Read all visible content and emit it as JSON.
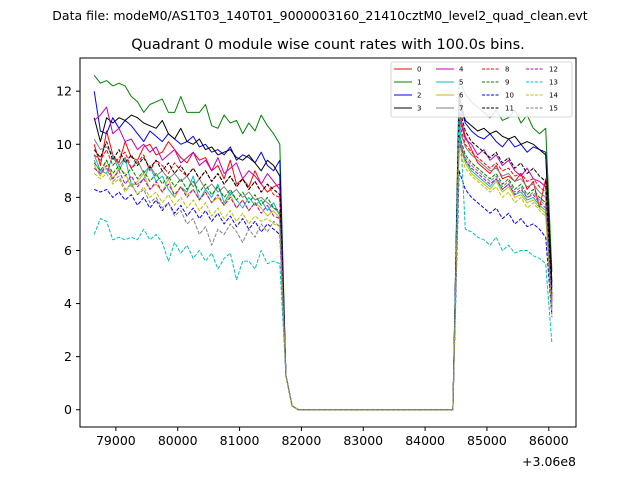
{
  "figure": {
    "suptitle": "Data file: modeM0/AS1T03_140T01_9000003160_21410cztM0_level2_quad_clean.evt"
  },
  "chart_data": {
    "type": "line",
    "title": "Quadrant 0 module wise count rates with 100.0s bins.",
    "xlabel": "",
    "ylabel": "",
    "x_offset_label": "+3.06e8",
    "xlim": [
      78420,
      86440
    ],
    "ylim": [
      -0.65,
      13.25
    ],
    "x_ticks": [
      79000,
      80000,
      81000,
      82000,
      83000,
      84000,
      85000,
      86000
    ],
    "x_tick_labels": [
      "79000",
      "80000",
      "81000",
      "82000",
      "83000",
      "84000",
      "85000",
      "86000"
    ],
    "y_ticks": [
      0,
      2,
      4,
      6,
      8,
      10,
      12
    ],
    "y_tick_labels": [
      "0",
      "2",
      "4",
      "6",
      "8",
      "10",
      "12"
    ],
    "grid": false,
    "legend_position": "top-right",
    "segments": {
      "seg1_x_start": 78650,
      "seg1_x_end": 81650,
      "drop_x": [
        81750,
        81850
      ],
      "gap_x": [
        81950,
        84450
      ],
      "seg2_x_start": 84550,
      "seg2_x_end": 85950,
      "tail_x": 86050,
      "step": 100
    },
    "series": [
      {
        "name": "0",
        "color": "#ff0000",
        "dashed": false,
        "seg1": [
          10.0,
          9.2,
          10.5,
          9.6,
          9.3,
          10.1,
          9.5,
          9.4,
          9.9,
          10.0,
          9.6,
          9.7,
          10.1,
          9.8,
          9.5,
          9.3,
          9.7,
          9.4,
          9.5,
          9.0,
          9.2,
          8.7,
          9.4,
          8.5,
          8.7,
          8.4,
          9.0,
          8.5,
          8.2,
          8.4,
          8.5
        ],
        "seg2": [
          11.2,
          10.3,
          9.8,
          9.3,
          9.1,
          8.9,
          9.2,
          8.7,
          8.8,
          8.6,
          8.9,
          8.3,
          8.6,
          7.6,
          8.7
        ],
        "tail": 4.2
      },
      {
        "name": "1",
        "color": "#008000",
        "dashed": false,
        "seg1": [
          12.6,
          12.3,
          12.4,
          12.2,
          12.3,
          12.2,
          11.8,
          11.6,
          11.2,
          11.5,
          11.6,
          11.7,
          11.2,
          11.2,
          11.8,
          11.2,
          11.2,
          11.2,
          11.5,
          10.7,
          10.6,
          11.1,
          10.8,
          10.9,
          10.4,
          10.8,
          10.5,
          11.1,
          10.7,
          10.4,
          10.0
        ],
        "seg2": [
          12.4,
          11.9,
          11.6,
          11.4,
          11.2,
          11.0,
          11.3,
          10.9,
          11.0,
          11.3,
          10.8,
          11.1,
          10.6,
          10.4,
          10.6
        ],
        "tail": 5.2
      },
      {
        "name": "2",
        "color": "#0000ff",
        "dashed": false,
        "seg1": [
          12.0,
          10.5,
          10.4,
          11.0,
          10.6,
          10.9,
          10.7,
          10.4,
          10.1,
          10.5,
          10.3,
          10.1,
          10.4,
          10.2,
          10.0,
          10.1,
          10.3,
          9.9,
          10.0,
          9.7,
          9.8,
          9.6,
          9.9,
          9.4,
          9.6,
          9.5,
          9.3,
          9.7,
          9.2,
          9.0,
          9.4
        ],
        "seg2": [
          11.6,
          10.8,
          10.5,
          10.3,
          10.2,
          10.4,
          10.1,
          9.9,
          10.2,
          9.9,
          10.0,
          9.7,
          9.9,
          9.8,
          9.7
        ],
        "tail": 4.6
      },
      {
        "name": "3",
        "color": "#000000",
        "dashed": false,
        "seg1": [
          11.0,
          10.1,
          11.0,
          10.8,
          11.0,
          10.9,
          11.1,
          11.0,
          10.8,
          10.7,
          10.6,
          10.9,
          10.4,
          10.2,
          10.6,
          10.1,
          10.0,
          10.2,
          9.8,
          9.9,
          9.6,
          9.7,
          9.8,
          9.5,
          9.4,
          9.6,
          9.3,
          9.0,
          9.4,
          9.2,
          8.8
        ],
        "seg2": [
          11.8,
          10.9,
          10.7,
          10.5,
          10.6,
          10.4,
          10.5,
          10.3,
          10.2,
          10.3,
          10.0,
          10.1,
          10.0,
          9.8,
          9.6
        ],
        "tail": 4.8
      },
      {
        "name": "4",
        "color": "#bf00bf",
        "dashed": false,
        "seg1": [
          10.9,
          11.1,
          11.4,
          10.4,
          10.6,
          10.1,
          10.2,
          9.8,
          10.0,
          9.7,
          9.9,
          9.4,
          9.6,
          9.8,
          9.3,
          9.5,
          9.7,
          9.2,
          9.4,
          9.0,
          9.5,
          8.9,
          9.1,
          9.3,
          8.7,
          9.0,
          8.8,
          8.5,
          8.9,
          8.6,
          8.3
        ],
        "seg2": [
          11.0,
          10.2,
          10.0,
          9.6,
          9.8,
          9.4,
          9.6,
          9.2,
          9.4,
          9.0,
          8.8,
          9.1,
          8.7,
          8.6,
          8.4
        ],
        "tail": 4.3
      },
      {
        "name": "5",
        "color": "#00bfbf",
        "dashed": false,
        "seg1": [
          9.6,
          9.0,
          8.9,
          9.6,
          9.0,
          9.5,
          8.5,
          8.5,
          8.7,
          9.2,
          8.6,
          8.8,
          8.3,
          8.0,
          8.4,
          8.2,
          8.8,
          7.9,
          8.3,
          8.0,
          8.5,
          7.8,
          8.2,
          7.9,
          7.6,
          8.0,
          7.7,
          7.9,
          7.5,
          7.8,
          7.3
        ],
        "seg2": [
          10.3,
          9.4,
          9.0,
          8.8,
          8.6,
          8.4,
          8.7,
          8.3,
          8.5,
          8.1,
          8.2,
          7.9,
          8.0,
          7.7,
          7.5
        ],
        "tail": 3.6
      },
      {
        "name": "6",
        "color": "#bfbf00",
        "dashed": false,
        "seg1": [
          9.2,
          8.8,
          9.4,
          8.7,
          9.1,
          8.9,
          8.4,
          8.6,
          8.9,
          8.3,
          8.5,
          8.2,
          8.7,
          8.0,
          8.4,
          8.1,
          8.3,
          7.9,
          8.2,
          7.8,
          8.0,
          7.7,
          8.1,
          7.6,
          7.9,
          7.5,
          7.8,
          7.6,
          7.3,
          7.5,
          7.2
        ],
        "seg2": [
          10.0,
          9.3,
          8.9,
          8.7,
          8.5,
          8.3,
          8.6,
          8.2,
          8.4,
          8.0,
          8.1,
          7.8,
          7.9,
          7.6,
          7.4
        ],
        "tail": 3.9
      },
      {
        "name": "7",
        "color": "#808080",
        "dashed": false,
        "seg1": [
          10.2,
          9.8,
          9.9,
          9.6,
          9.2,
          9.5,
          9.1,
          9.4,
          8.9,
          9.2,
          8.8,
          9.0,
          8.7,
          8.9,
          8.6,
          8.8,
          8.4,
          8.7,
          8.3,
          8.5,
          8.2,
          8.4,
          8.1,
          8.3,
          8.0,
          8.2,
          7.9,
          8.0,
          7.8,
          7.6,
          7.4
        ],
        "seg2": [
          10.6,
          9.9,
          9.6,
          9.4,
          9.2,
          9.0,
          9.1,
          8.8,
          8.9,
          8.6,
          8.7,
          8.4,
          8.5,
          8.2,
          8.0
        ],
        "tail": 4.0
      },
      {
        "name": "8",
        "color": "#ff0000",
        "dashed": true,
        "seg1": [
          9.6,
          9.4,
          9.8,
          9.2,
          9.5,
          9.7,
          9.1,
          9.3,
          9.6,
          9.0,
          9.4,
          9.2,
          8.9,
          9.3,
          9.0,
          8.8,
          9.1,
          8.7,
          9.0,
          8.6,
          8.9,
          8.5,
          8.8,
          8.4,
          8.7,
          8.3,
          8.6,
          8.2,
          8.5,
          8.1,
          8.0
        ],
        "seg2": [
          10.8,
          10.0,
          9.7,
          9.5,
          9.3,
          9.1,
          9.3,
          9.0,
          9.1,
          8.8,
          8.9,
          8.6,
          8.7,
          8.4,
          8.2
        ],
        "tail": 4.1
      },
      {
        "name": "9",
        "color": "#008000",
        "dashed": true,
        "seg1": [
          9.3,
          9.0,
          9.4,
          8.9,
          9.2,
          8.8,
          9.1,
          8.7,
          9.0,
          8.6,
          8.9,
          8.5,
          8.8,
          8.4,
          8.7,
          8.3,
          8.6,
          8.2,
          8.5,
          8.1,
          8.4,
          8.0,
          8.3,
          7.9,
          8.2,
          7.8,
          8.1,
          7.7,
          8.0,
          7.6,
          7.5
        ],
        "seg2": [
          10.4,
          9.6,
          9.3,
          9.1,
          8.9,
          8.7,
          8.9,
          8.5,
          8.7,
          8.3,
          8.5,
          8.1,
          8.3,
          8.0,
          7.8
        ],
        "tail": 3.8
      },
      {
        "name": "10",
        "color": "#0000ff",
        "dashed": true,
        "seg1": [
          8.3,
          8.2,
          8.3,
          8.0,
          8.2,
          7.9,
          8.1,
          7.7,
          8.0,
          7.6,
          7.9,
          7.5,
          7.8,
          7.4,
          7.7,
          7.3,
          7.6,
          7.2,
          7.5,
          7.1,
          7.4,
          7.0,
          7.3,
          6.9,
          7.2,
          6.8,
          7.1,
          6.7,
          7.0,
          6.8,
          6.6
        ],
        "seg2": [
          9.0,
          8.3,
          8.0,
          7.8,
          7.6,
          7.4,
          7.6,
          7.2,
          7.4,
          7.0,
          7.2,
          6.9,
          7.0,
          6.8,
          6.5
        ],
        "tail": 3.5
      },
      {
        "name": "11",
        "color": "#000000",
        "dashed": true,
        "seg1": [
          9.8,
          9.5,
          10.1,
          9.4,
          9.8,
          9.3,
          9.6,
          9.2,
          9.5,
          9.1,
          9.4,
          9.0,
          9.3,
          8.9,
          9.2,
          8.8,
          9.1,
          8.7,
          9.0,
          8.6,
          8.9,
          8.5,
          8.8,
          8.4,
          8.7,
          8.3,
          8.6,
          8.2,
          8.5,
          8.3,
          8.1
        ],
        "seg2": [
          11.4,
          10.5,
          10.1,
          9.9,
          9.7,
          9.5,
          9.7,
          9.3,
          9.5,
          9.1,
          9.3,
          8.9,
          9.1,
          8.8,
          8.6
        ],
        "tail": 4.4
      },
      {
        "name": "12",
        "color": "#bf00bf",
        "dashed": true,
        "seg1": [
          9.1,
          8.9,
          9.2,
          8.7,
          9.0,
          8.5,
          8.8,
          8.4,
          8.7,
          8.3,
          8.6,
          8.2,
          8.5,
          8.1,
          8.4,
          8.0,
          8.3,
          7.9,
          8.2,
          7.8,
          8.1,
          7.7,
          8.0,
          7.6,
          7.9,
          7.5,
          7.8,
          7.4,
          7.7,
          7.3,
          7.2
        ],
        "seg2": [
          10.1,
          9.4,
          9.1,
          8.9,
          8.7,
          8.5,
          8.7,
          8.3,
          8.5,
          8.1,
          8.3,
          8.0,
          8.1,
          7.8,
          7.6
        ],
        "tail": 3.7
      },
      {
        "name": "13",
        "color": "#00bfbf",
        "dashed": true,
        "seg1": [
          6.6,
          7.2,
          7.1,
          6.4,
          6.5,
          6.4,
          6.5,
          6.4,
          6.8,
          6.4,
          6.6,
          6.3,
          5.6,
          6.3,
          5.9,
          6.2,
          5.7,
          6.0,
          5.6,
          5.9,
          5.3,
          5.7,
          5.9,
          4.9,
          5.6,
          5.6,
          5.3,
          6.0,
          5.5,
          5.6,
          5.5
        ],
        "seg2": [
          11.5,
          6.8,
          6.7,
          6.5,
          6.4,
          6.2,
          6.5,
          6.0,
          6.2,
          5.9,
          6.0,
          6.0,
          5.8,
          5.7,
          5.5
        ],
        "tail": 2.5
      },
      {
        "name": "14",
        "color": "#bfbf00",
        "dashed": true,
        "seg1": [
          8.9,
          8.7,
          8.9,
          8.5,
          8.7,
          8.2,
          8.5,
          8.1,
          8.4,
          8.0,
          8.2,
          7.8,
          8.1,
          7.7,
          8.0,
          7.6,
          7.9,
          7.5,
          7.8,
          7.3,
          7.6,
          7.2,
          7.5,
          7.1,
          7.4,
          7.0,
          7.3,
          7.1,
          7.2,
          7.0,
          6.9
        ],
        "seg2": [
          9.8,
          9.1,
          8.8,
          8.6,
          8.4,
          8.2,
          8.4,
          8.0,
          8.2,
          7.8,
          8.0,
          7.6,
          7.8,
          7.5,
          7.3
        ],
        "tail": 3.6
      },
      {
        "name": "15",
        "color": "#808080",
        "dashed": true,
        "seg1": [
          9.4,
          8.9,
          9.1,
          8.6,
          8.8,
          8.3,
          8.5,
          8.1,
          8.3,
          7.8,
          8.0,
          7.6,
          7.8,
          7.3,
          7.5,
          7.0,
          7.2,
          6.6,
          6.9,
          6.2,
          6.8,
          6.6,
          7.0,
          6.7,
          6.3,
          6.8,
          6.5,
          7.0,
          6.7,
          7.1,
          6.9
        ],
        "seg2": [
          10.2,
          9.5,
          9.2,
          9.0,
          8.8,
          8.6,
          8.8,
          8.4,
          8.6,
          8.2,
          8.4,
          8.0,
          8.2,
          7.9,
          7.7
        ],
        "tail": 3.9
      }
    ]
  }
}
